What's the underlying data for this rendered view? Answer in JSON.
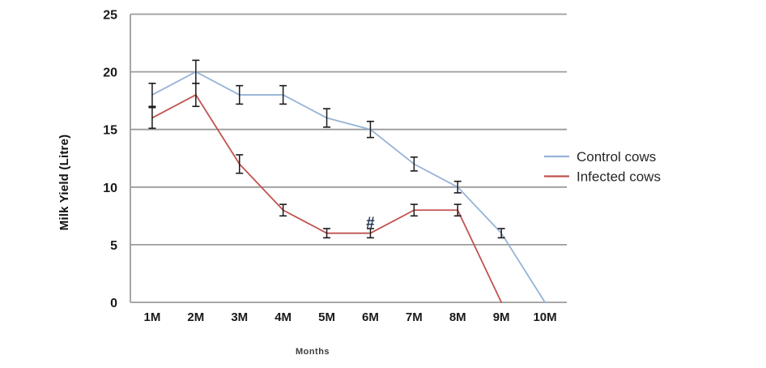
{
  "chart_data": {
    "type": "line",
    "title": "",
    "xlabel": "Months",
    "ylabel": "Milk Yield (Litre)",
    "categories": [
      "1M",
      "2M",
      "3M",
      "4M",
      "5M",
      "6M",
      "7M",
      "8M",
      "9M",
      "10M"
    ],
    "ylim": [
      0,
      25
    ],
    "yticks": [
      0,
      5,
      10,
      15,
      20,
      25
    ],
    "grid": true,
    "legend_position": "right-of-plot",
    "error_bars": true,
    "series": [
      {
        "name": "Control cows",
        "color": "#95b3d7",
        "values": [
          18,
          20,
          18,
          18,
          16,
          15,
          12,
          10,
          6,
          0
        ],
        "errors": [
          1,
          1,
          0.8,
          0.8,
          0.8,
          0.7,
          0.6,
          0.5,
          0.4,
          0
        ]
      },
      {
        "name": "Infected cows",
        "color": "#c0534f",
        "values": [
          16,
          18,
          12,
          8,
          6,
          6,
          8,
          8,
          0
        ],
        "errors": [
          0.9,
          1,
          0.8,
          0.5,
          0.4,
          0.4,
          0.5,
          0.5,
          0
        ]
      }
    ],
    "annotations": [
      {
        "text": "#",
        "category": "6M",
        "value": 6.9
      }
    ]
  },
  "style": {
    "background": "#ffffff",
    "grid_color": "#9c9c9c",
    "axis_color": "#9c9c9c",
    "error_bar_color": "#1a1a1a",
    "annotation_color": "#1f3050"
  }
}
